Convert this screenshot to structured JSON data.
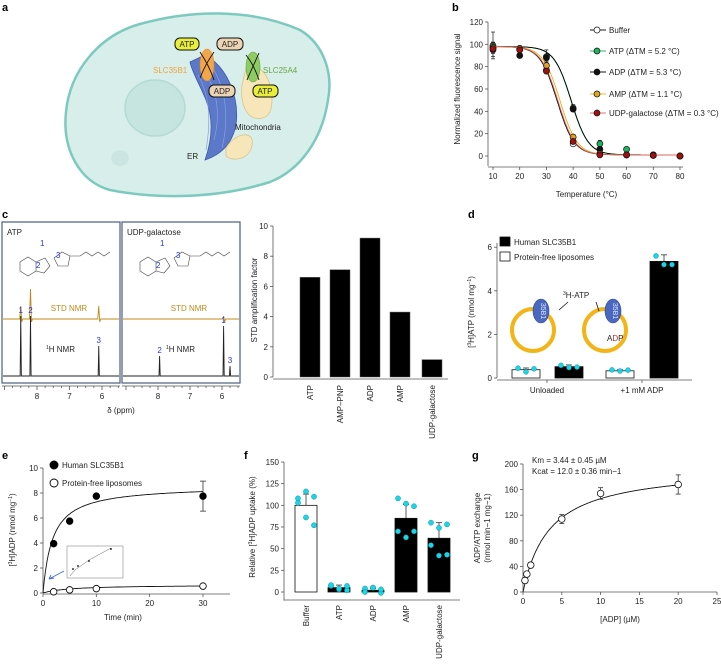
{
  "figure": {
    "panels": {
      "a": "a",
      "b": "b",
      "c": "c",
      "d": "d",
      "e": "e",
      "f": "f",
      "g": "g"
    }
  },
  "diagram_a": {
    "atp_top": "ATP",
    "adp_top": "ADP",
    "adp_er": "ADP",
    "atp_mito": "ATP",
    "slc35b1": "SLC35B1",
    "slc25a4": "SLC25A4",
    "mitochondria": "Mitochondria",
    "er": "ER",
    "colors": {
      "cell": "#d7eeea",
      "cell_border": "#7ccabf",
      "er": "#5b78c9",
      "atp": "#e8ee3a",
      "adp": "#ecd3b4",
      "slc35b1": "#f2a64a",
      "slc25a4": "#8ecb63",
      "mito": "#f6e6b9"
    }
  },
  "chart_data": [
    {
      "panel": "b",
      "type": "line",
      "xlabel": "Temperature (°C)",
      "ylabel": "Normalized fluorescence signal",
      "xlim": [
        5,
        82
      ],
      "ylim": [
        -10,
        120
      ],
      "xticks": [
        10,
        20,
        30,
        40,
        50,
        60,
        70,
        80
      ],
      "yticks": [
        0,
        20,
        40,
        60,
        80,
        100,
        120
      ],
      "legend": "top-right",
      "x": [
        10,
        20,
        30,
        40,
        50,
        60,
        70,
        80
      ],
      "series": [
        {
          "name": "Buffer",
          "label": "Buffer",
          "color": "#000000",
          "fill": "#ffffff",
          "tm": 34.0,
          "values": [
            97,
            95,
            77,
            11,
            2,
            1,
            0.5,
            0
          ],
          "yerr": [
            5,
            2,
            3,
            2,
            1,
            1,
            1,
            1
          ]
        },
        {
          "name": "ATP",
          "label": "ATP (ΔTM = 5.2 °C)",
          "color": "#1aa858",
          "fill": "#1db35f",
          "tm": 39.2,
          "values": [
            99,
            96,
            89,
            43,
            11,
            6,
            1,
            0
          ],
          "yerr": [
            12,
            3,
            6,
            3,
            3,
            2,
            1,
            1
          ]
        },
        {
          "name": "ADP",
          "label": "ADP (ΔTM = 5.3 °C)",
          "color": "#000000",
          "fill": "#111111",
          "tm": 39.3,
          "values": [
            95,
            90,
            88,
            42,
            6,
            1,
            1,
            0
          ],
          "yerr": [
            6,
            2,
            3,
            2,
            2,
            1,
            1,
            1
          ]
        },
        {
          "name": "AMP",
          "label": "AMP (ΔTM = 1.1 °C)",
          "color": "#e0b21e",
          "fill": "#d9a81c",
          "tm": 35.1,
          "values": [
            97,
            96,
            81,
            17,
            2,
            1,
            0.5,
            0
          ],
          "yerr": [
            4,
            2,
            3,
            2,
            1,
            1,
            1,
            1
          ]
        },
        {
          "name": "UDP-galactose",
          "label": "UDP-galactose (ΔTM = 0.3 °C)",
          "color": "#e06060",
          "fill": "#a01010",
          "tm": 34.3,
          "values": [
            96,
            95,
            76,
            13,
            1,
            1,
            0.5,
            0
          ],
          "yerr": [
            4,
            2,
            2,
            2,
            1,
            1,
            1,
            1
          ]
        }
      ]
    },
    {
      "panel": "c",
      "type": "line",
      "xlabel": "δ (ppm)",
      "xticks": [
        8,
        7,
        6
      ],
      "spectra": [
        {
          "title": "ATP",
          "std_label": "STD NMR",
          "h_label": "1H NMR",
          "h_sup": "1",
          "h_text": "H NMR",
          "std_peaks": [
            {
              "ppm": 8.5,
              "h": 13
            },
            {
              "ppm": 8.2,
              "h": 30
            },
            {
              "ppm": 6.1,
              "h": 13
            }
          ],
          "h_peaks": [
            {
              "ppm": 8.5,
              "h": 60,
              "label": "1"
            },
            {
              "ppm": 8.2,
              "h": 60,
              "label": "2"
            },
            {
              "ppm": 6.1,
              "h": 30,
              "label": "3"
            }
          ],
          "structure_labels": [
            "1",
            "2",
            "3"
          ]
        },
        {
          "title": "UDP-galactose",
          "std_label": "STD NMR",
          "h_label": "1H NMR",
          "h_sup": "1",
          "h_text": "H NMR",
          "std_peaks": [
            {
              "ppm": 5.95,
              "h": 3
            }
          ],
          "h_peaks": [
            {
              "ppm": 7.95,
              "h": 20,
              "label": "2"
            },
            {
              "ppm": 5.95,
              "h": 50,
              "label": "1"
            },
            {
              "ppm": 5.75,
              "h": 10,
              "label": "3"
            }
          ],
          "structure_labels": [
            "1",
            "2",
            "3"
          ]
        }
      ],
      "colors": {
        "std": "#c08a1a",
        "h": "#222222",
        "frame": "#4a5f80"
      }
    },
    {
      "panel": "c",
      "type": "bar",
      "ylabel": "STD amplification factor",
      "ylim": [
        0,
        10
      ],
      "yticks": [
        0,
        2,
        4,
        6,
        8,
        10
      ],
      "categories": [
        "ATP",
        "AMP–PNP",
        "ADP",
        "AMP",
        "UDP-galactose"
      ],
      "values": [
        6.6,
        7.1,
        9.2,
        4.3,
        1.15
      ]
    },
    {
      "panel": "d",
      "type": "bar",
      "ylabel": "[3H]ATP (nmol mg−1)",
      "ylabel_parts": [
        "[",
        "3",
        "H]ATP (nmol mg",
        "−1",
        ")"
      ],
      "ylim": [
        0,
        6
      ],
      "yticks": [
        0,
        2,
        4,
        6
      ],
      "categories": [
        "Unloaded",
        "+1 mM ADP"
      ],
      "legend": "top-left",
      "series": [
        {
          "name": "Protein-free liposomes",
          "fill": "#ffffff",
          "values": [
            0.38,
            0.33
          ],
          "yerr": [
            0.08,
            0.05
          ],
          "points": [
            [
              0.45,
              0.28,
              0.42
            ],
            [
              0.37,
              0.32,
              0.36
            ]
          ]
        },
        {
          "name": "Human SLC35B1",
          "fill": "#000000",
          "values": [
            0.52,
            5.35
          ],
          "yerr": [
            0.08,
            0.3
          ],
          "points": [
            [
              0.58,
              0.48,
              0.5
            ],
            [
              5.6,
              5.2,
              5.2
            ]
          ]
        }
      ],
      "inset": {
        "tracer": "3H-ATP",
        "tracer_sup": "3",
        "tracer_text": "H-ATP",
        "protein": "35B1",
        "cargo": "ADP",
        "cargo_parts": [
          "A",
          "D",
          "P"
        ],
        "point_color": "#19d6e6"
      }
    },
    {
      "panel": "e",
      "type": "scatter",
      "xlabel": "Time (min)",
      "ylabel": "[3H]ADP (nmol mg−1)",
      "ylabel_parts": [
        "[",
        "3",
        "H]ADP (nmol mg",
        "−1",
        ")"
      ],
      "xlim": [
        0,
        35
      ],
      "ylim": [
        0,
        10
      ],
      "xticks": [
        0,
        10,
        20,
        30
      ],
      "yticks": [
        0,
        2,
        4,
        6,
        8,
        10
      ],
      "legend": "top-left",
      "series": [
        {
          "name": "Human SLC35B1",
          "filled": true,
          "x": [
            2,
            5,
            10,
            30
          ],
          "values": [
            3.95,
            5.75,
            7.75,
            7.75
          ],
          "yerr": [
            0,
            0,
            0,
            1.2
          ],
          "fit": {
            "vmax": 8.6,
            "k": 1.8
          }
        },
        {
          "name": "Protein-free liposomes",
          "filled": false,
          "x": [
            2,
            5,
            10,
            30
          ],
          "values": [
            0.1,
            0.25,
            0.35,
            0.55
          ],
          "yerr": [
            0,
            0,
            0,
            0
          ],
          "fit": {
            "vmax": 0.65,
            "k": 5
          }
        }
      ]
    },
    {
      "panel": "f",
      "type": "bar",
      "ylabel": "Relative [3H]ADP uptake (%)",
      "ylabel_parts": [
        "Relative [",
        "3",
        "H]ADP uptake (%)"
      ],
      "ylim": [
        0,
        150
      ],
      "yticks": [
        0,
        25,
        50,
        75,
        100,
        125,
        150
      ],
      "categories": [
        "Buffer",
        "ATP",
        "ADP",
        "AMP",
        "UDP-galactose"
      ],
      "values": [
        100,
        5,
        2,
        85,
        62
      ],
      "yerr": [
        13,
        3,
        2,
        16,
        18
      ],
      "fills": [
        "#ffffff",
        "#000000",
        "#000000",
        "#000000",
        "#000000"
      ],
      "points": [
        [
          108,
          116,
          110,
          103,
          86,
          77
        ],
        [
          7,
          3,
          2,
          8,
          4,
          7
        ],
        [
          4,
          5,
          -1,
          0,
          5,
          3
        ],
        [
          108,
          102,
          99,
          70,
          63,
          70
        ],
        [
          80,
          74,
          78,
          54,
          42,
          43
        ]
      ]
    },
    {
      "panel": "g",
      "type": "scatter",
      "xlabel": "[ADP] (µM)",
      "ylabel": [
        "ADP/ATP exchange",
        "(nmol min−1 mg−1)"
      ],
      "xlim": [
        0,
        25
      ],
      "ylim": [
        0,
        200
      ],
      "xticks": [
        0,
        5,
        10,
        15,
        20,
        25
      ],
      "yticks": [
        0,
        40,
        80,
        120,
        160,
        200
      ],
      "x": [
        0.25,
        0.5,
        1,
        5,
        10,
        20
      ],
      "values": [
        18,
        28,
        42,
        114,
        154,
        168
      ],
      "yerr": [
        4,
        3,
        3,
        7,
        9,
        15
      ],
      "annotations": [
        "Km = 3.44 ± 0.45 µM",
        "Kcat = 12.0 ± 0.36 min−1"
      ],
      "fit": {
        "km": 3.44,
        "vmax": 196
      }
    }
  ]
}
